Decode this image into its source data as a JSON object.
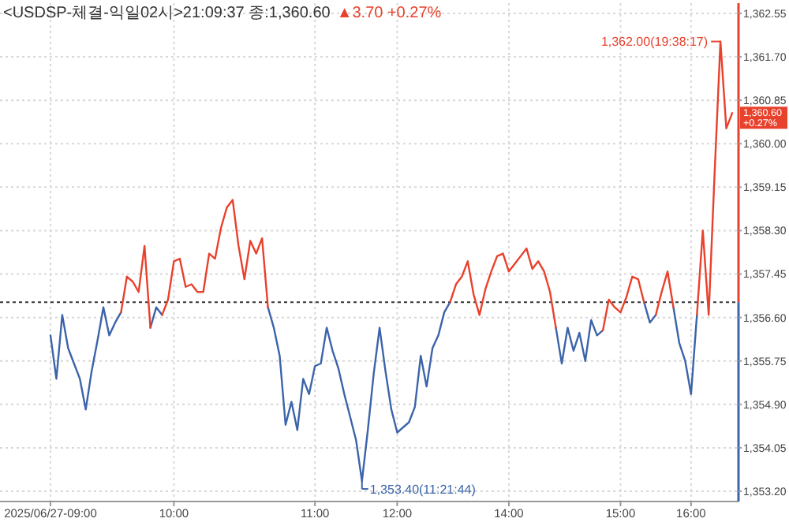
{
  "chart_data": {
    "type": "line",
    "title": "<USDSP-체결-익일02시>21:09:37 종:1,360.60",
    "subtitle": "▲3.70 +0.27%",
    "categories": [
      "2025/06/27-09:00",
      null,
      null,
      null,
      null,
      null,
      null,
      null,
      null,
      null,
      null,
      null,
      null,
      null,
      null,
      null,
      null,
      null,
      null,
      null,
      null,
      "10:00",
      null,
      null,
      null,
      null,
      null,
      null,
      null,
      null,
      null,
      null,
      null,
      null,
      null,
      null,
      null,
      null,
      null,
      null,
      null,
      null,
      null,
      null,
      null,
      "11:00",
      null,
      null,
      null,
      null,
      null,
      null,
      null,
      null,
      null,
      null,
      null,
      null,
      null,
      "12:00",
      null,
      null,
      null,
      null,
      null,
      null,
      null,
      null,
      null,
      null,
      null,
      null,
      null,
      null,
      null,
      null,
      null,
      null,
      "14:00",
      null,
      null,
      null,
      null,
      null,
      null,
      null,
      null,
      null,
      null,
      null,
      null,
      null,
      null,
      null,
      null,
      null,
      null,
      "15:00",
      null,
      null,
      null,
      null,
      null,
      null,
      null,
      null,
      null,
      null,
      null,
      "16:00",
      null,
      null,
      null,
      null,
      null,
      null,
      null
    ],
    "series": [
      {
        "color": "#3c64aa",
        "values": [
          1356.25,
          1355.4,
          1356.65,
          1356.0,
          1355.7,
          1355.4,
          1354.8,
          1355.55,
          1356.15,
          1356.8,
          1356.25,
          1356.5,
          1356.7,
          null,
          null,
          null,
          null,
          1356.4,
          1356.8,
          1356.65,
          null,
          null,
          null,
          null,
          null,
          null,
          null,
          null,
          null,
          null,
          null,
          null,
          null,
          null,
          null,
          null,
          null,
          1356.8,
          1356.4,
          1355.85,
          1354.5,
          1354.95,
          1354.4,
          1355.4,
          1355.1,
          1355.65,
          1355.7,
          1356.4,
          1355.95,
          1355.6,
          1355.1,
          1354.65,
          1354.2,
          1353.4,
          1354.4,
          1355.5,
          1356.4,
          1355.55,
          1354.8,
          1354.35,
          1354.45,
          1354.55,
          1354.85,
          1355.85,
          1355.25,
          1356.0,
          1356.25,
          1356.7,
          1356.9,
          null,
          null,
          null,
          null,
          null,
          null,
          null,
          null,
          null,
          null,
          null,
          null,
          null,
          null,
          null,
          null,
          null,
          1356.4,
          1355.7,
          1356.4,
          1355.95,
          1356.3,
          1355.75,
          1356.55,
          1356.25,
          1356.35,
          null,
          null,
          null,
          null,
          null,
          null,
          1356.9,
          1356.5,
          1356.65,
          null,
          null,
          1356.8,
          1356.1,
          1355.75,
          1355.1,
          1356.65,
          null,
          null,
          null,
          null,
          null,
          null
        ]
      },
      {
        "color": "#e8412c",
        "values": [
          null,
          null,
          null,
          null,
          null,
          null,
          null,
          null,
          null,
          null,
          null,
          null,
          1356.7,
          1357.4,
          1357.3,
          1357.1,
          1358.0,
          1356.4,
          null,
          1356.65,
          1356.95,
          1357.7,
          1357.75,
          1357.2,
          1357.25,
          1357.1,
          1357.1,
          1357.85,
          1357.75,
          1358.35,
          1358.75,
          1358.9,
          1358.0,
          1357.35,
          1358.1,
          1357.85,
          1358.15,
          1356.8,
          null,
          null,
          null,
          null,
          null,
          null,
          null,
          null,
          null,
          null,
          null,
          null,
          null,
          null,
          null,
          null,
          null,
          null,
          null,
          null,
          null,
          null,
          null,
          null,
          null,
          null,
          null,
          null,
          null,
          null,
          1356.9,
          1357.25,
          1357.4,
          1357.7,
          1357.05,
          1356.65,
          1357.15,
          1357.5,
          1357.8,
          1357.85,
          1357.5,
          1357.65,
          1357.8,
          1357.95,
          1357.55,
          1357.7,
          1357.5,
          1357.1,
          1356.4,
          null,
          null,
          null,
          null,
          null,
          null,
          null,
          1356.35,
          1356.95,
          1356.8,
          1356.7,
          1357.0,
          1357.4,
          1357.35,
          1356.9,
          null,
          1356.65,
          1357.1,
          1357.5,
          1356.8,
          null,
          null,
          null,
          1356.65,
          1358.3,
          1356.65,
          1359.4,
          1362.0,
          1360.3,
          1360.6
        ]
      }
    ],
    "ylim": [
      1353.0,
      1362.75
    ],
    "yticks": [
      {
        "value": 1353.2,
        "label": "1,353.20"
      },
      {
        "value": 1354.05,
        "label": "1,354.05"
      },
      {
        "value": 1354.9,
        "label": "1,354.90"
      },
      {
        "value": 1355.75,
        "label": "1,355.75"
      },
      {
        "value": 1356.6,
        "label": "1,356.60"
      },
      {
        "value": 1357.45,
        "label": "1,357.45"
      },
      {
        "value": 1358.3,
        "label": "1,358.30"
      },
      {
        "value": 1359.15,
        "label": "1,359.15"
      },
      {
        "value": 1360.0,
        "label": "1,360.00"
      },
      {
        "value": 1360.85,
        "label": "1,360.85"
      },
      {
        "value": 1361.7,
        "label": "1,361.70"
      },
      {
        "value": 1362.55,
        "label": "1,362.55"
      }
    ],
    "ref_lines": [
      {
        "axis": "y",
        "value": 1356.9,
        "color": "#333333",
        "line_style": "dotted"
      }
    ],
    "annotations": [
      "1,362.00(19:38:17)",
      "1,353.40(11:21:44)",
      "1,360.60",
      "+0.27%"
    ],
    "grid": true
  }
}
